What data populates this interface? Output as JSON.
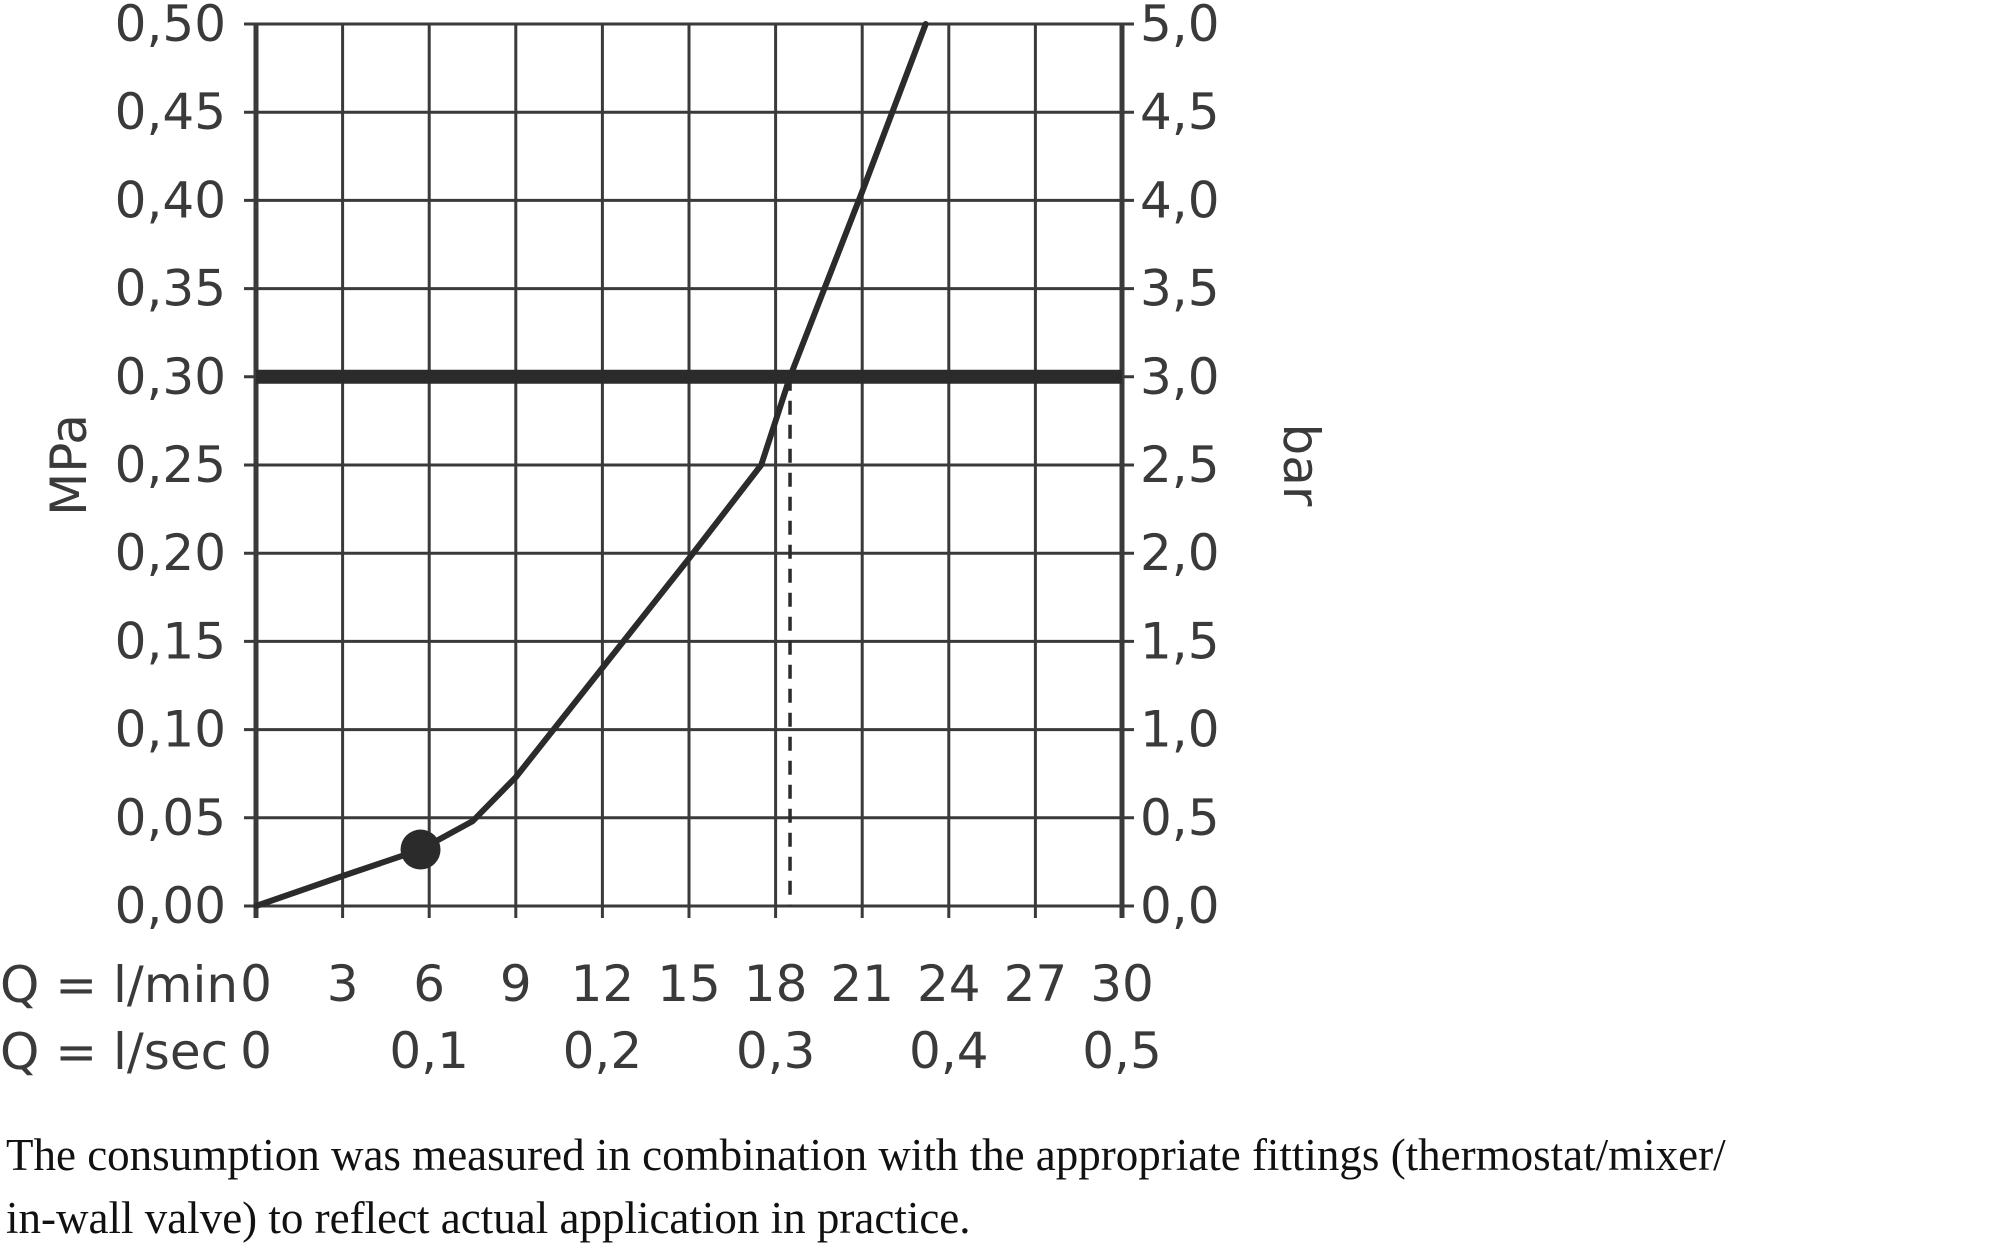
{
  "chart_data": {
    "type": "line",
    "xlabel_min": "Q = l/min",
    "xlabel_sec": "Q = l/sec",
    "ylabel_left": "MPa",
    "ylabel_right": "bar",
    "xlim": [
      0,
      30
    ],
    "ylim": [
      0,
      0.5
    ],
    "grid": true,
    "x_ticks_min": [
      "0",
      "3",
      "6",
      "9",
      "12",
      "15",
      "18",
      "21",
      "24",
      "27",
      "30"
    ],
    "x_ticks_sec": [
      "0",
      "0,1",
      "0,2",
      "0,3",
      "0,4",
      "0,5"
    ],
    "y_ticks_left": [
      "0,00",
      "0,05",
      "0,10",
      "0,15",
      "0,20",
      "0,25",
      "0,30",
      "0,35",
      "0,40",
      "0,45",
      "0,50"
    ],
    "y_ticks_right": [
      "0,0",
      "0,5",
      "1,0",
      "1,5",
      "2,0",
      "2,5",
      "3,0",
      "3,5",
      "4,0",
      "4,5",
      "5,0"
    ],
    "series": [
      {
        "x": [
          0,
          3,
          5.7,
          7.5,
          9,
          12,
          15,
          17.5,
          18.5,
          21,
          23.2
        ],
        "y": [
          0,
          0.017,
          0.032,
          0.048,
          0.073,
          0.135,
          0.197,
          0.25,
          0.3,
          0.405,
          0.5
        ]
      }
    ],
    "reference_line_y": 0.3,
    "marker_point": {
      "x": 5.7,
      "y": 0.032
    },
    "drop_line_x": 18.5,
    "colors": {
      "line": "#2b2b2b",
      "grid": "#3a3a3a",
      "text": "#3a3a3a"
    }
  },
  "caption": {
    "line1": "The consumption was measured in combination with the appropriate fittings (thermostat/mixer/",
    "line2": "in-wall valve) to reflect actual application in practice."
  }
}
